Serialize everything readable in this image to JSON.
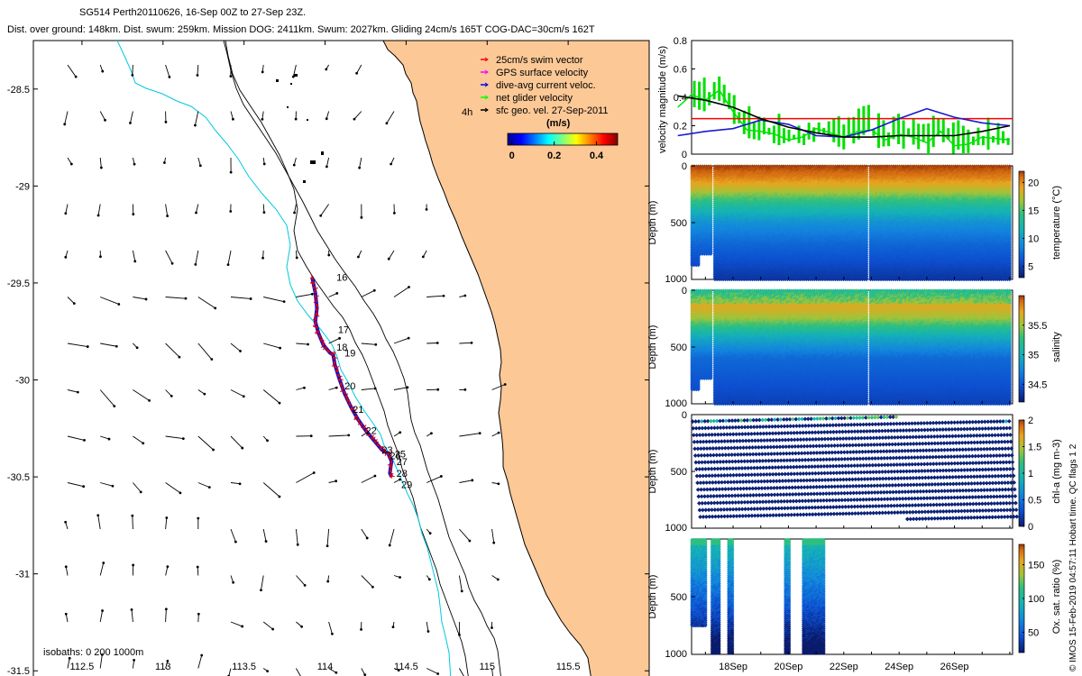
{
  "header": {
    "title_line1": "SG514 Perth20110626, 16-Sep 00Z to 27-Sep 23Z.",
    "title_line2": "Dist. over ground: 148km. Dist. swum: 259km. Mission DOG: 2411km. Swum: 2027km. Gliding 24cm/s 165T COG-DAC=30cm/s 162T"
  },
  "credit": "© IMOS 15-Feb-2019 04:57:11 Hobart time. QC flags 1 2",
  "colors": {
    "land": "#fcc896",
    "track_red": "#e00000",
    "track_blue": "#1010d0",
    "velocity_green": "#00e000",
    "velocity_blue": "#1a1ad0",
    "velocity_black": "#000000",
    "threshold_red": "#ff0000",
    "isobath_cyan": "#00c8e0"
  },
  "chart_data": [
    {
      "type": "map",
      "x_ticks": [
        "112.5",
        "113",
        "113.5",
        "114",
        "114.5",
        "115",
        "115.5"
      ],
      "y_ticks": [
        "-28.5",
        "-29",
        "-29.5",
        "-30",
        "-30.5",
        "-31",
        "-31.5"
      ],
      "xlim": [
        112.2,
        116.0
      ],
      "ylim": [
        -31.55,
        -28.25
      ],
      "legend": {
        "entries": [
          {
            "label": "25cm/s swim vector",
            "color": "#ff0000"
          },
          {
            "label": "GPS surface velocity",
            "color": "#ff00ff"
          },
          {
            "label": "dive-avg current veloc.",
            "color": "#0000ff"
          },
          {
            "label": "net glider velocity",
            "color": "#00ff00"
          },
          {
            "label": "sfc geo. vel. 27-Sep-2011",
            "color": "#000000"
          }
        ],
        "extra_label": "4h",
        "colorbar_unit": "(m/s)",
        "colorbar_ticks": [
          "0",
          "0.2",
          "0.4"
        ]
      },
      "isobaths_label": "isobaths: 0   200  1000m",
      "day_labels": [
        {
          "day": "16",
          "lon": 114.07,
          "lat": -29.47
        },
        {
          "day": "17",
          "lon": 114.08,
          "lat": -29.74
        },
        {
          "day": "18",
          "lon": 114.07,
          "lat": -29.83
        },
        {
          "day": "19",
          "lon": 114.12,
          "lat": -29.86
        },
        {
          "day": "20",
          "lon": 114.12,
          "lat": -30.03
        },
        {
          "day": "21",
          "lon": 114.17,
          "lat": -30.15
        },
        {
          "day": "22",
          "lon": 114.25,
          "lat": -30.26
        },
        {
          "day": "23",
          "lon": 114.35,
          "lat": -30.36
        },
        {
          "day": "26",
          "lon": 114.4,
          "lat": -30.39
        },
        {
          "day": "25",
          "lon": 114.43,
          "lat": -30.38
        },
        {
          "day": "27",
          "lon": 114.44,
          "lat": -30.42
        },
        {
          "day": "28",
          "lon": 114.44,
          "lat": -30.48
        },
        {
          "day": "29",
          "lon": 114.47,
          "lat": -30.54
        }
      ]
    },
    {
      "type": "line",
      "ylabel": "velocity magnitude (m/s)",
      "ylim": [
        0,
        0.8
      ],
      "y_ticks": [
        "0",
        "0.2",
        "0.4",
        "0.6",
        "0.8"
      ],
      "threshold": 0.25,
      "series": [
        {
          "color": "#000000",
          "x": [
            16,
            17,
            18,
            19,
            20,
            21,
            22,
            23,
            24,
            25,
            26,
            27,
            28
          ],
          "values": [
            0.41,
            0.38,
            0.33,
            0.25,
            0.19,
            0.15,
            0.12,
            0.12,
            0.13,
            0.13,
            0.13,
            0.16,
            0.2
          ]
        },
        {
          "color": "#1a1ad0",
          "x": [
            16,
            17,
            18,
            19,
            20,
            21,
            22,
            23,
            24,
            25,
            26,
            27,
            28
          ],
          "values": [
            0.13,
            0.16,
            0.18,
            0.24,
            0.21,
            0.13,
            0.12,
            0.17,
            0.25,
            0.32,
            0.26,
            0.22,
            0.2
          ]
        },
        {
          "color": "#00e000",
          "x": [
            16,
            16.5,
            17,
            17.5,
            18,
            18.5,
            19,
            19.5,
            20,
            20.5,
            21,
            21.5,
            22,
            22.5,
            23,
            23.5,
            24,
            24.5,
            25,
            25.5,
            26,
            26.5,
            27,
            27.5,
            28
          ],
          "values": [
            0.33,
            0.42,
            0.38,
            0.45,
            0.3,
            0.17,
            0.16,
            0.14,
            0.1,
            0.12,
            0.18,
            0.15,
            0.12,
            0.16,
            0.17,
            0.1,
            0.14,
            0.12,
            0.08,
            0.16,
            0.06,
            0.07,
            0.12,
            0.11,
            0.1
          ]
        }
      ]
    },
    {
      "type": "heatmap",
      "ylabel": "Depth (m)",
      "y_ticks": [
        "0",
        "500",
        "1000"
      ],
      "colorbar_label": "temperature (°C)",
      "colorbar_ticks": [
        "5",
        "10",
        "15",
        "20"
      ],
      "profile": [
        {
          "depth": 0,
          "value": 22
        },
        {
          "depth": 100,
          "value": 20.5
        },
        {
          "depth": 200,
          "value": 18
        },
        {
          "depth": 350,
          "value": 13
        },
        {
          "depth": 500,
          "value": 9.5
        },
        {
          "depth": 700,
          "value": 7
        },
        {
          "depth": 1000,
          "value": 4.5
        }
      ],
      "vmin": 3,
      "vmax": 22
    },
    {
      "type": "heatmap",
      "ylabel": "Depth (m)",
      "y_ticks": [
        "0",
        "500",
        "1000"
      ],
      "colorbar_label": "salinity",
      "colorbar_ticks": [
        "34.5",
        "35",
        "35.5"
      ],
      "profile": [
        {
          "depth": 0,
          "value": 35.3
        },
        {
          "depth": 150,
          "value": 35.7
        },
        {
          "depth": 250,
          "value": 35.5
        },
        {
          "depth": 400,
          "value": 35.0
        },
        {
          "depth": 600,
          "value": 34.6
        },
        {
          "depth": 1000,
          "value": 34.4
        }
      ],
      "vmin": 34.2,
      "vmax": 36.0
    },
    {
      "type": "scatter",
      "ylabel": "Depth (m)",
      "y_ticks": [
        "0",
        "500",
        "1000"
      ],
      "colorbar_label": "chl-a (mg m-3)",
      "colorbar_ticks": [
        "0",
        "0.5",
        "1",
        "1.5",
        "2"
      ],
      "vmin": 0,
      "vmax": 2
    },
    {
      "type": "scatter",
      "ylabel": "Depth (m)",
      "y_ticks": [
        "500",
        "1000"
      ],
      "colorbar_label": "Ox. sat. ratio (%)",
      "colorbar_ticks": [
        "50",
        "100",
        "150"
      ],
      "vmin": 20,
      "vmax": 180,
      "x_ticks": [
        "18Sep",
        "20Sep",
        "22Sep",
        "24Sep",
        "26Sep"
      ]
    }
  ]
}
